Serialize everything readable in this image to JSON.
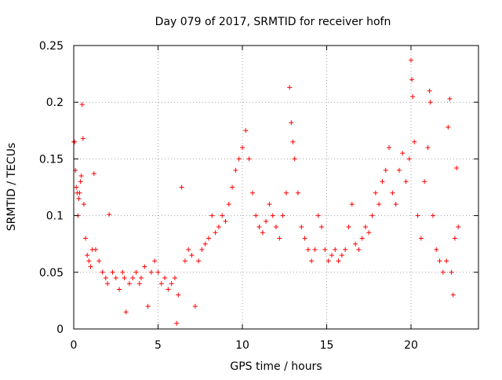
{
  "chart_data": {
    "type": "scatter",
    "title": "Day 079 of 2017, SRMTID for receiver hofn",
    "xlabel": "GPS time / hours",
    "ylabel": "SRMTID / TECUs",
    "xlim": [
      0,
      24
    ],
    "ylim": [
      0,
      0.25
    ],
    "xticks": [
      0,
      5,
      10,
      15,
      20
    ],
    "xtick_labels": [
      "0",
      "5",
      "10",
      "15",
      "20"
    ],
    "yticks": [
      0,
      0.05,
      0.1,
      0.15,
      0.2,
      0.25
    ],
    "ytick_labels": [
      "0",
      "0.05",
      "0.1",
      "0.15",
      "0.2",
      "0.25"
    ],
    "grid": true,
    "marker": "+",
    "series": [
      {
        "name": "SRMTID",
        "points": [
          [
            0.0,
            0.165
          ],
          [
            0.05,
            0.165
          ],
          [
            0.1,
            0.14
          ],
          [
            0.15,
            0.125
          ],
          [
            0.2,
            0.12
          ],
          [
            0.25,
            0.1
          ],
          [
            0.3,
            0.115
          ],
          [
            0.35,
            0.12
          ],
          [
            0.4,
            0.13
          ],
          [
            0.45,
            0.135
          ],
          [
            0.5,
            0.198
          ],
          [
            0.55,
            0.168
          ],
          [
            0.6,
            0.11
          ],
          [
            0.7,
            0.08
          ],
          [
            0.8,
            0.065
          ],
          [
            0.9,
            0.06
          ],
          [
            1.0,
            0.055
          ],
          [
            1.1,
            0.07
          ],
          [
            1.2,
            0.137
          ],
          [
            1.3,
            0.07
          ],
          [
            1.5,
            0.06
          ],
          [
            1.7,
            0.05
          ],
          [
            1.9,
            0.045
          ],
          [
            2.0,
            0.04
          ],
          [
            2.1,
            0.101
          ],
          [
            2.3,
            0.05
          ],
          [
            2.5,
            0.045
          ],
          [
            2.7,
            0.035
          ],
          [
            2.9,
            0.05
          ],
          [
            3.0,
            0.045
          ],
          [
            3.1,
            0.015
          ],
          [
            3.3,
            0.04
          ],
          [
            3.5,
            0.045
          ],
          [
            3.7,
            0.05
          ],
          [
            3.9,
            0.04
          ],
          [
            4.0,
            0.045
          ],
          [
            4.2,
            0.055
          ],
          [
            4.4,
            0.02
          ],
          [
            4.6,
            0.05
          ],
          [
            4.8,
            0.06
          ],
          [
            5.0,
            0.05
          ],
          [
            5.2,
            0.04
          ],
          [
            5.4,
            0.045
          ],
          [
            5.6,
            0.035
          ],
          [
            5.8,
            0.04
          ],
          [
            6.0,
            0.045
          ],
          [
            6.1,
            0.005
          ],
          [
            6.2,
            0.03
          ],
          [
            6.4,
            0.125
          ],
          [
            6.6,
            0.06
          ],
          [
            6.8,
            0.07
          ],
          [
            7.0,
            0.065
          ],
          [
            7.2,
            0.02
          ],
          [
            7.4,
            0.06
          ],
          [
            7.6,
            0.07
          ],
          [
            7.8,
            0.075
          ],
          [
            8.0,
            0.08
          ],
          [
            8.2,
            0.1
          ],
          [
            8.4,
            0.085
          ],
          [
            8.6,
            0.09
          ],
          [
            8.8,
            0.1
          ],
          [
            9.0,
            0.095
          ],
          [
            9.2,
            0.11
          ],
          [
            9.4,
            0.125
          ],
          [
            9.6,
            0.14
          ],
          [
            9.8,
            0.15
          ],
          [
            10.0,
            0.16
          ],
          [
            10.2,
            0.175
          ],
          [
            10.4,
            0.15
          ],
          [
            10.6,
            0.12
          ],
          [
            10.8,
            0.1
          ],
          [
            11.0,
            0.09
          ],
          [
            11.2,
            0.085
          ],
          [
            11.4,
            0.095
          ],
          [
            11.6,
            0.11
          ],
          [
            11.8,
            0.1
          ],
          [
            12.0,
            0.09
          ],
          [
            12.2,
            0.08
          ],
          [
            12.4,
            0.1
          ],
          [
            12.6,
            0.12
          ],
          [
            12.8,
            0.213
          ],
          [
            12.9,
            0.182
          ],
          [
            13.0,
            0.165
          ],
          [
            13.1,
            0.15
          ],
          [
            13.3,
            0.12
          ],
          [
            13.5,
            0.09
          ],
          [
            13.7,
            0.08
          ],
          [
            13.9,
            0.07
          ],
          [
            14.1,
            0.06
          ],
          [
            14.3,
            0.07
          ],
          [
            14.5,
            0.1
          ],
          [
            14.7,
            0.09
          ],
          [
            14.9,
            0.07
          ],
          [
            15.1,
            0.06
          ],
          [
            15.3,
            0.065
          ],
          [
            15.5,
            0.07
          ],
          [
            15.7,
            0.06
          ],
          [
            15.9,
            0.065
          ],
          [
            16.1,
            0.07
          ],
          [
            16.3,
            0.09
          ],
          [
            16.5,
            0.11
          ],
          [
            16.7,
            0.075
          ],
          [
            16.9,
            0.07
          ],
          [
            17.1,
            0.08
          ],
          [
            17.3,
            0.09
          ],
          [
            17.5,
            0.085
          ],
          [
            17.7,
            0.1
          ],
          [
            17.9,
            0.12
          ],
          [
            18.1,
            0.11
          ],
          [
            18.3,
            0.13
          ],
          [
            18.5,
            0.14
          ],
          [
            18.7,
            0.16
          ],
          [
            18.9,
            0.12
          ],
          [
            19.1,
            0.11
          ],
          [
            19.3,
            0.14
          ],
          [
            19.5,
            0.155
          ],
          [
            19.7,
            0.13
          ],
          [
            19.9,
            0.15
          ],
          [
            20.0,
            0.237
          ],
          [
            20.05,
            0.22
          ],
          [
            20.1,
            0.205
          ],
          [
            20.2,
            0.165
          ],
          [
            20.4,
            0.1
          ],
          [
            20.6,
            0.08
          ],
          [
            20.8,
            0.13
          ],
          [
            21.0,
            0.16
          ],
          [
            21.1,
            0.21
          ],
          [
            21.15,
            0.2
          ],
          [
            21.3,
            0.1
          ],
          [
            21.5,
            0.07
          ],
          [
            21.7,
            0.06
          ],
          [
            21.9,
            0.05
          ],
          [
            22.1,
            0.06
          ],
          [
            22.2,
            0.178
          ],
          [
            22.3,
            0.203
          ],
          [
            22.4,
            0.05
          ],
          [
            22.5,
            0.03
          ],
          [
            22.6,
            0.08
          ],
          [
            22.7,
            0.142
          ],
          [
            22.8,
            0.09
          ]
        ]
      }
    ]
  }
}
